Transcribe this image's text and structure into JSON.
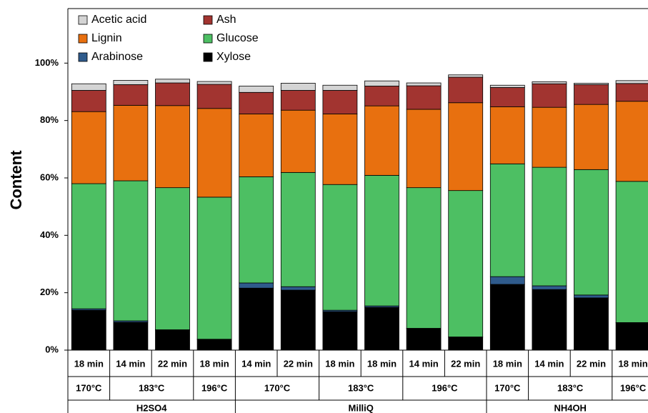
{
  "chart_data": {
    "type": "stacked_bar",
    "y_label": "Content",
    "categories": [
      "18 min",
      "14 min",
      "22 min",
      "18 min",
      "14 min",
      "22 min",
      "18 min",
      "18 min",
      "14 min",
      "22 min",
      "18 min",
      "14 min",
      "22 min",
      "18 min"
    ],
    "temperatures": [
      "170°C",
      "183°C",
      null,
      "196°C",
      "170°C",
      null,
      "183°C",
      null,
      "196°C",
      null,
      "170°C",
      "183°C",
      null,
      "196°C"
    ],
    "solvents": [
      "H2SO4",
      null,
      null,
      null,
      "MilliQ",
      null,
      null,
      null,
      null,
      null,
      "NH4OH",
      null,
      null,
      null
    ],
    "series": [
      {
        "name": "Xylose",
        "color": "#000000",
        "values": [
          13.9,
          9.7,
          7.0,
          3.7,
          21.6,
          20.9,
          13.4,
          14.9,
          7.5,
          4.5,
          22.9,
          21.1,
          18.2,
          9.5
        ]
      },
      {
        "name": "Arabinose",
        "color": "#2f5b8c",
        "values": [
          0.5,
          0.5,
          0.1,
          0.1,
          1.8,
          1.2,
          0.5,
          0.5,
          0.1,
          0.1,
          2.7,
          1.3,
          1.0,
          0.1
        ]
      },
      {
        "name": "Glucose",
        "color": "#4dbf63",
        "values": [
          43.6,
          48.8,
          49.5,
          49.5,
          37.0,
          39.8,
          43.8,
          45.5,
          49.0,
          51.0,
          39.3,
          41.3,
          43.7,
          49.2
        ]
      },
      {
        "name": "Lignin",
        "color": "#e8700f",
        "values": [
          25.1,
          26.3,
          28.6,
          30.9,
          21.9,
          21.7,
          24.6,
          24.2,
          27.3,
          30.6,
          19.9,
          20.9,
          22.7,
          27.9
        ]
      },
      {
        "name": "Ash",
        "color": "#a23430",
        "values": [
          7.4,
          7.2,
          7.9,
          8.4,
          7.5,
          6.9,
          8.2,
          6.9,
          8.2,
          8.9,
          6.7,
          8.2,
          6.9,
          6.2
        ]
      },
      {
        "name": "Acetic acid",
        "color": "#d4d4d4",
        "values": [
          2.3,
          1.5,
          1.3,
          1.0,
          2.2,
          2.5,
          1.8,
          1.8,
          1.0,
          0.8,
          0.8,
          0.7,
          0.5,
          1.0
        ]
      }
    ],
    "ylim": [
      0,
      119
    ],
    "yticks": [
      {
        "value": 0,
        "label": "0%"
      },
      {
        "value": 20,
        "label": "20%"
      },
      {
        "value": 40,
        "label": "40%"
      },
      {
        "value": 60,
        "label": "60%"
      },
      {
        "value": 80,
        "label": "80%"
      },
      {
        "value": 100,
        "label": "100%"
      }
    ]
  }
}
